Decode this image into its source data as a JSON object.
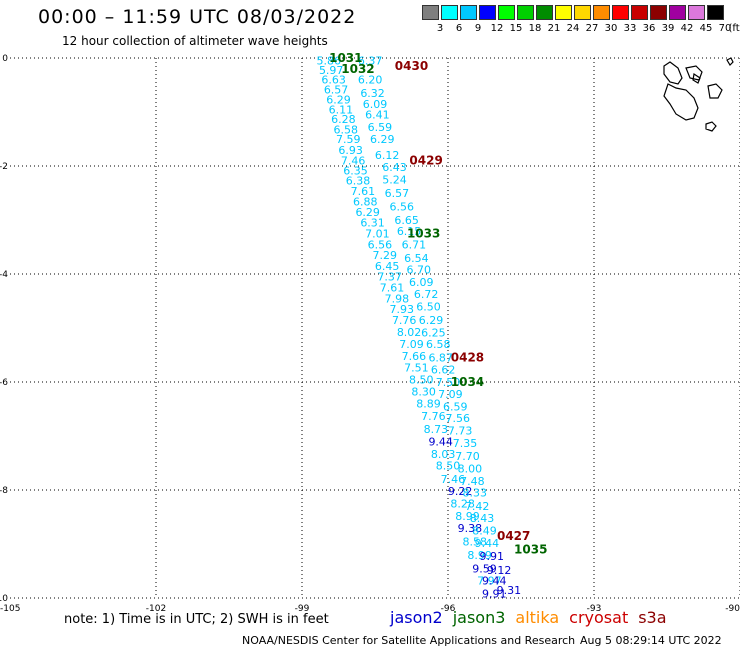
{
  "header": {
    "title": "00:00 – 11:59 UTC 08/03/2022",
    "subtitle": "12 hour collection of altimeter wave heights"
  },
  "color_scale": {
    "unit_label": "(ft)",
    "bins": [
      {
        "label": "3",
        "color": "#7f7f7f"
      },
      {
        "label": "6",
        "color": "#00ffff"
      },
      {
        "label": "9",
        "color": "#00c8ff"
      },
      {
        "label": "12",
        "color": "#0000ff"
      },
      {
        "label": "15",
        "color": "#00ff00"
      },
      {
        "label": "18",
        "color": "#00d000"
      },
      {
        "label": "21",
        "color": "#008c00"
      },
      {
        "label": "24",
        "color": "#ffff00"
      },
      {
        "label": "27",
        "color": "#ffd700"
      },
      {
        "label": "30",
        "color": "#ff8c00"
      },
      {
        "label": "33",
        "color": "#ff0000"
      },
      {
        "label": "36",
        "color": "#c80000"
      },
      {
        "label": "39",
        "color": "#8c0000"
      },
      {
        "label": "42",
        "color": "#a000a0"
      },
      {
        "label": "45",
        "color": "#dc78dc"
      },
      {
        "label": "70",
        "color": "#000000"
      }
    ]
  },
  "footer": {
    "note": "note:  1) Time is in UTC; 2) SWH is in feet",
    "satellites": [
      {
        "name": "jason2",
        "color": "#0000cc"
      },
      {
        "name": "jason3",
        "color": "#006400"
      },
      {
        "name": "altika",
        "color": "#ff8c00"
      },
      {
        "name": "cryosat",
        "color": "#cc0000"
      },
      {
        "name": "s3a",
        "color": "#8b0000"
      }
    ],
    "credit": "NOAA/NESDIS Center for Satellite Applications and Research",
    "timestamp": "Aug  5 08:29:14 UTC 2022"
  },
  "chart_data": {
    "type": "scatter",
    "xlim": [
      -105,
      -90
    ],
    "ylim": [
      -10,
      0
    ],
    "x_ticks": [
      -105,
      -102,
      -99,
      -96,
      -93,
      -90
    ],
    "y_ticks": [
      0,
      -2,
      -4,
      -6,
      -8,
      -10
    ],
    "grid": true,
    "cyan_color": "#00c8ff",
    "blue_color": "#0000cc",
    "tracks": [
      {
        "name": "track-a",
        "points": [
          {
            "x": -98.45,
            "y": -0.05,
            "v": "5.86",
            "c": "cyan"
          },
          {
            "x": -98.4,
            "y": -0.22,
            "v": "5.97",
            "c": "cyan"
          },
          {
            "x": -98.35,
            "y": -0.4,
            "v": "6.63",
            "c": "cyan"
          },
          {
            "x": -98.3,
            "y": -0.58,
            "v": "6.57",
            "c": "cyan"
          },
          {
            "x": -98.25,
            "y": -0.77,
            "v": "6.29",
            "c": "cyan"
          },
          {
            "x": -98.2,
            "y": -0.95,
            "v": "6.11",
            "c": "cyan"
          },
          {
            "x": -98.15,
            "y": -1.13,
            "v": "6.28",
            "c": "cyan"
          },
          {
            "x": -98.1,
            "y": -1.32,
            "v": "6.58",
            "c": "cyan"
          },
          {
            "x": -98.05,
            "y": -1.5,
            "v": "7.59",
            "c": "cyan"
          },
          {
            "x": -98.0,
            "y": -1.7,
            "v": "6.93",
            "c": "cyan"
          },
          {
            "x": -97.95,
            "y": -1.9,
            "v": "7.46",
            "c": "cyan"
          },
          {
            "x": -97.9,
            "y": -2.08,
            "v": "6.35",
            "c": "cyan"
          },
          {
            "x": -97.85,
            "y": -2.27,
            "v": "6.38",
            "c": "cyan"
          },
          {
            "x": -97.75,
            "y": -2.46,
            "v": "7.61",
            "c": "cyan"
          },
          {
            "x": -97.7,
            "y": -2.66,
            "v": "6.88",
            "c": "cyan"
          },
          {
            "x": -97.65,
            "y": -2.85,
            "v": "6.29",
            "c": "cyan"
          },
          {
            "x": -97.55,
            "y": -3.05,
            "v": "6.31",
            "c": "cyan"
          },
          {
            "x": -97.45,
            "y": -3.25,
            "v": "7.01",
            "c": "cyan"
          },
          {
            "x": -97.4,
            "y": -3.45,
            "v": "6.56",
            "c": "cyan"
          },
          {
            "x": -97.3,
            "y": -3.65,
            "v": "7.29",
            "c": "cyan"
          },
          {
            "x": -97.25,
            "y": -3.85,
            "v": "6.45",
            "c": "cyan"
          },
          {
            "x": -97.2,
            "y": -4.05,
            "v": "7.37",
            "c": "cyan"
          },
          {
            "x": -97.15,
            "y": -4.25,
            "v": "7.61",
            "c": "cyan"
          },
          {
            "x": -97.05,
            "y": -4.45,
            "v": "7.98",
            "c": "cyan"
          },
          {
            "x": -96.95,
            "y": -4.65,
            "v": "7.93",
            "c": "cyan"
          },
          {
            "x": -96.9,
            "y": -4.85,
            "v": "7.76",
            "c": "cyan"
          },
          {
            "x": -96.8,
            "y": -5.07,
            "v": "8.02",
            "c": "cyan"
          },
          {
            "x": -96.75,
            "y": -5.3,
            "v": "7.09",
            "c": "cyan"
          },
          {
            "x": -96.7,
            "y": -5.52,
            "v": "7.66",
            "c": "cyan"
          },
          {
            "x": -96.65,
            "y": -5.73,
            "v": "7.51",
            "c": "cyan"
          },
          {
            "x": -96.55,
            "y": -5.95,
            "v": "8.50",
            "c": "cyan"
          },
          {
            "x": -96.5,
            "y": -6.18,
            "v": "8.30",
            "c": "cyan"
          },
          {
            "x": -96.4,
            "y": -6.4,
            "v": "8.89",
            "c": "cyan"
          },
          {
            "x": -96.3,
            "y": -6.63,
            "v": "7.76",
            "c": "cyan"
          },
          {
            "x": -96.25,
            "y": -6.87,
            "v": "8.73",
            "c": "cyan"
          },
          {
            "x": -96.15,
            "y": -7.1,
            "v": "9.44",
            "c": "blue"
          },
          {
            "x": -96.1,
            "y": -7.33,
            "v": "8.03",
            "c": "cyan"
          },
          {
            "x": -96.0,
            "y": -7.55,
            "v": "8.50",
            "c": "cyan"
          },
          {
            "x": -95.9,
            "y": -7.8,
            "v": "7.46",
            "c": "cyan"
          },
          {
            "x": -95.75,
            "y": -8.02,
            "v": "9.22",
            "c": "blue"
          },
          {
            "x": -95.7,
            "y": -8.25,
            "v": "8.28",
            "c": "cyan"
          },
          {
            "x": -95.6,
            "y": -8.48,
            "v": "8.99",
            "c": "cyan"
          },
          {
            "x": -95.55,
            "y": -8.7,
            "v": "9.38",
            "c": "blue"
          },
          {
            "x": -95.45,
            "y": -8.95,
            "v": "8.58",
            "c": "cyan"
          },
          {
            "x": -95.35,
            "y": -9.2,
            "v": "8.99",
            "c": "cyan"
          },
          {
            "x": -95.25,
            "y": -9.45,
            "v": "9.59",
            "c": "blue"
          },
          {
            "x": -95.15,
            "y": -9.68,
            "v": "7.97",
            "c": "cyan"
          },
          {
            "x": -95.05,
            "y": -9.92,
            "v": "9.91",
            "c": "blue"
          }
        ]
      },
      {
        "name": "track-b",
        "points": [
          {
            "x": -97.6,
            "y": -0.05,
            "v": "6.37",
            "c": "cyan"
          },
          {
            "x": -97.6,
            "y": -0.4,
            "v": "6.20",
            "c": "cyan"
          },
          {
            "x": -97.55,
            "y": -0.65,
            "v": "6.32",
            "c": "cyan"
          },
          {
            "x": -97.5,
            "y": -0.85,
            "v": "6.09",
            "c": "cyan"
          },
          {
            "x": -97.45,
            "y": -1.05,
            "v": "6.41",
            "c": "cyan"
          },
          {
            "x": -97.4,
            "y": -1.28,
            "v": "6.59",
            "c": "cyan"
          },
          {
            "x": -97.35,
            "y": -1.5,
            "v": "6.29",
            "c": "cyan"
          },
          {
            "x": -97.25,
            "y": -1.8,
            "v": "6.12",
            "c": "cyan"
          },
          {
            "x": -97.1,
            "y": -2.02,
            "v": "6.43",
            "c": "cyan"
          },
          {
            "x": -97.1,
            "y": -2.25,
            "v": "5.24",
            "c": "cyan"
          },
          {
            "x": -97.05,
            "y": -2.5,
            "v": "6.57",
            "c": "cyan"
          },
          {
            "x": -96.95,
            "y": -2.75,
            "v": "6.56",
            "c": "cyan"
          },
          {
            "x": -96.85,
            "y": -3.0,
            "v": "6.65",
            "c": "cyan"
          },
          {
            "x": -96.8,
            "y": -3.2,
            "v": "6.15",
            "c": "cyan"
          },
          {
            "x": -96.7,
            "y": -3.45,
            "v": "6.71",
            "c": "cyan"
          },
          {
            "x": -96.65,
            "y": -3.7,
            "v": "6.54",
            "c": "cyan"
          },
          {
            "x": -96.6,
            "y": -3.92,
            "v": "6.70",
            "c": "cyan"
          },
          {
            "x": -96.55,
            "y": -4.15,
            "v": "6.09",
            "c": "cyan"
          },
          {
            "x": -96.45,
            "y": -4.37,
            "v": "6.72",
            "c": "cyan"
          },
          {
            "x": -96.4,
            "y": -4.6,
            "v": "6.50",
            "c": "cyan"
          },
          {
            "x": -96.35,
            "y": -4.85,
            "v": "6.29",
            "c": "cyan"
          },
          {
            "x": -96.3,
            "y": -5.08,
            "v": "6.25",
            "c": "cyan"
          },
          {
            "x": -96.2,
            "y": -5.3,
            "v": "6.58",
            "c": "cyan"
          },
          {
            "x": -96.15,
            "y": -5.55,
            "v": "6.87",
            "c": "cyan"
          },
          {
            "x": -96.1,
            "y": -5.77,
            "v": "6.62",
            "c": "cyan"
          },
          {
            "x": -96.0,
            "y": -6.0,
            "v": "7.50",
            "c": "cyan"
          },
          {
            "x": -95.95,
            "y": -6.22,
            "v": "7.09",
            "c": "cyan"
          },
          {
            "x": -95.85,
            "y": -6.45,
            "v": "6.59",
            "c": "cyan"
          },
          {
            "x": -95.8,
            "y": -6.67,
            "v": "7.56",
            "c": "cyan"
          },
          {
            "x": -95.75,
            "y": -6.9,
            "v": "7.73",
            "c": "cyan"
          },
          {
            "x": -95.65,
            "y": -7.13,
            "v": "7.35",
            "c": "cyan"
          },
          {
            "x": -95.6,
            "y": -7.37,
            "v": "7.70",
            "c": "cyan"
          },
          {
            "x": -95.55,
            "y": -7.6,
            "v": "8.00",
            "c": "cyan"
          },
          {
            "x": -95.5,
            "y": -7.83,
            "v": "7.48",
            "c": "cyan"
          },
          {
            "x": -95.45,
            "y": -8.05,
            "v": "8.33",
            "c": "cyan"
          },
          {
            "x": -95.4,
            "y": -8.3,
            "v": "7.42",
            "c": "cyan"
          },
          {
            "x": -95.3,
            "y": -8.52,
            "v": "8.43",
            "c": "cyan"
          },
          {
            "x": -95.25,
            "y": -8.75,
            "v": "8.49",
            "c": "cyan"
          },
          {
            "x": -95.2,
            "y": -8.98,
            "v": "9.44",
            "c": "cyan"
          },
          {
            "x": -95.1,
            "y": -9.22,
            "v": "9.91",
            "c": "blue"
          },
          {
            "x": -94.95,
            "y": -9.48,
            "v": "9.12",
            "c": "blue"
          },
          {
            "x": -95.05,
            "y": -9.68,
            "v": "9.44",
            "c": "blue"
          },
          {
            "x": -94.75,
            "y": -9.85,
            "v": "9.31",
            "c": "blue"
          }
        ]
      }
    ],
    "pass_labels": [
      {
        "text": "1031",
        "x": -98.1,
        "y": 0.0,
        "satellite": "jason3"
      },
      {
        "text": "1032",
        "x": -97.85,
        "y": -0.2,
        "satellite": "jason3"
      },
      {
        "text": "0430",
        "x": -96.75,
        "y": -0.15,
        "satellite": "s3a"
      },
      {
        "text": "0429",
        "x": -96.45,
        "y": -1.9,
        "satellite": "s3a"
      },
      {
        "text": "1033",
        "x": -96.5,
        "y": -3.25,
        "satellite": "jason3"
      },
      {
        "text": "0428",
        "x": -95.6,
        "y": -5.55,
        "satellite": "s3a"
      },
      {
        "text": "1034",
        "x": -95.6,
        "y": -6.0,
        "satellite": "jason3"
      },
      {
        "text": "0427",
        "x": -94.65,
        "y": -8.85,
        "satellite": "s3a"
      },
      {
        "text": "1035",
        "x": -94.3,
        "y": -9.1,
        "satellite": "jason3"
      }
    ]
  }
}
